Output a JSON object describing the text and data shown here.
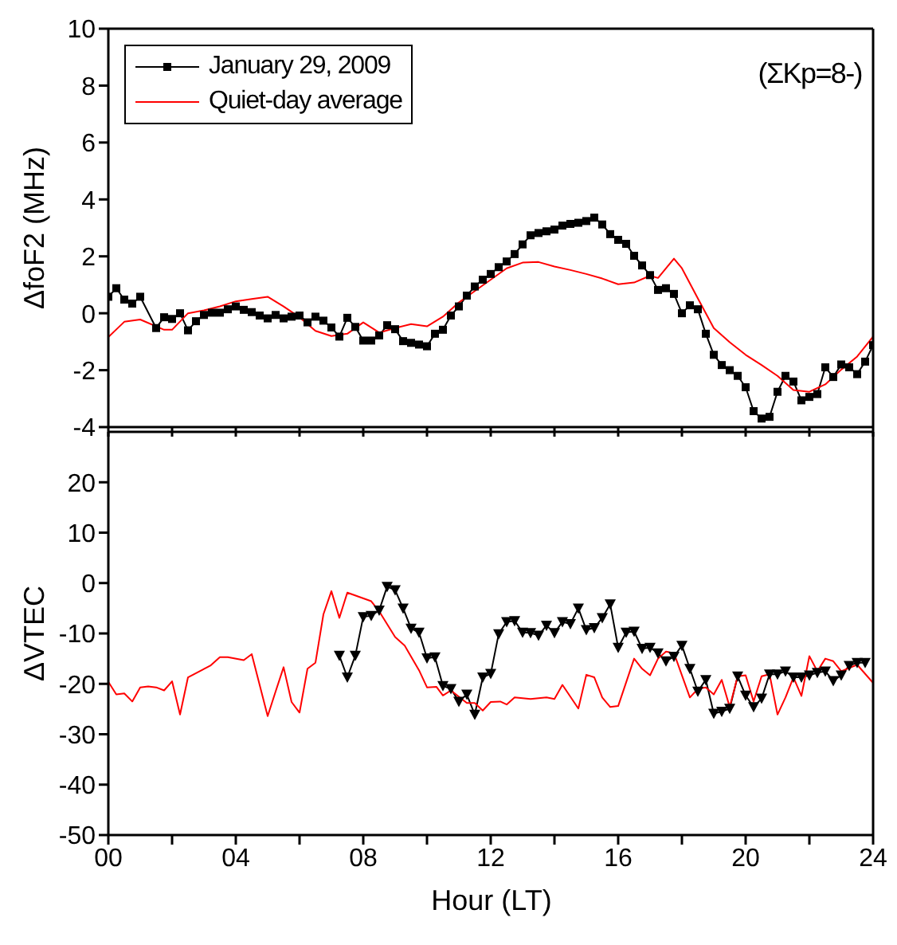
{
  "chart_data": [
    {
      "type": "line",
      "ylabel": "ΔfoF2 (MHz)",
      "xlim": [
        0,
        24
      ],
      "xticks": [
        {
          "value": 0,
          "label": null
        },
        {
          "value": 2,
          "label": null
        },
        {
          "value": 4,
          "label": null
        },
        {
          "value": 6,
          "label": null
        },
        {
          "value": 8,
          "label": null
        },
        {
          "value": 10,
          "label": null
        },
        {
          "value": 12,
          "label": null
        },
        {
          "value": 14,
          "label": null
        },
        {
          "value": 16,
          "label": null
        },
        {
          "value": 18,
          "label": null
        },
        {
          "value": 20,
          "label": null
        },
        {
          "value": 22,
          "label": null
        },
        {
          "value": 24,
          "label": null
        }
      ],
      "ylim": [
        -4,
        10
      ],
      "yticks": [
        -4,
        -2,
        0,
        2,
        4,
        6,
        8,
        10
      ],
      "tick_labels": "y",
      "legend": "top left",
      "annotations": [
        "(ΣKp=8-)"
      ],
      "series": [
        {
          "name": "January 29, 2009",
          "color": "#000000",
          "marker": "square",
          "x": [
            0,
            0.25,
            0.5,
            0.75,
            1,
            1.5,
            1.75,
            2,
            2.25,
            2.5,
            2.75,
            3,
            3.25,
            3.5,
            3.75,
            4,
            4.25,
            4.5,
            4.75,
            5,
            5.25,
            5.5,
            5.75,
            6,
            6.25,
            6.5,
            6.75,
            7,
            7.25,
            7.5,
            7.75,
            8,
            8.25,
            8.5,
            8.75,
            9,
            9.25,
            9.5,
            9.75,
            10,
            10.25,
            10.5,
            10.75,
            11,
            11.25,
            11.5,
            11.75,
            12,
            12.25,
            12.5,
            12.75,
            13,
            13.25,
            13.5,
            13.75,
            14,
            14.25,
            14.5,
            14.75,
            15,
            15.25,
            15.5,
            15.75,
            16,
            16.25,
            16.5,
            16.75,
            17,
            17.25,
            17.5,
            17.75,
            18,
            18.25,
            18.5,
            18.75,
            19,
            19.25,
            19.5,
            19.75,
            20,
            20.25,
            20.5,
            20.75,
            21,
            21.25,
            21.5,
            21.75,
            22,
            22.25,
            22.5,
            22.75,
            23,
            23.25,
            23.5,
            23.75,
            24
          ],
          "values": [
            0.58,
            0.88,
            0.48,
            0.34,
            0.58,
            -0.52,
            -0.14,
            -0.2,
            0,
            -0.6,
            -0.28,
            -0.06,
            0.02,
            0.02,
            0.14,
            0.24,
            0.12,
            0.04,
            -0.08,
            -0.18,
            -0.06,
            -0.18,
            -0.12,
            -0.08,
            -0.32,
            -0.12,
            -0.26,
            -0.5,
            -0.82,
            -0.16,
            -0.48,
            -0.96,
            -0.96,
            -0.78,
            -0.42,
            -0.56,
            -0.98,
            -1.04,
            -1.1,
            -1.16,
            -0.72,
            -0.58,
            -0.08,
            0.24,
            0.62,
            0.94,
            1.18,
            1.38,
            1.62,
            1.82,
            2.08,
            2.42,
            2.74,
            2.82,
            2.88,
            2.94,
            3.08,
            3.14,
            3.18,
            3.24,
            3.36,
            3.12,
            2.78,
            2.58,
            2.44,
            2.02,
            1.68,
            1.34,
            0.82,
            0.88,
            0.68,
            0,
            0.28,
            0.14,
            -0.72,
            -1.46,
            -1.82,
            -2,
            -2.2,
            -2.6,
            -3.44,
            -3.7,
            -3.64,
            -2.76,
            -2.2,
            -2.4,
            -3.06,
            -2.94,
            -2.84,
            -1.9,
            -2.24,
            -1.8,
            -1.9,
            -2.14,
            -1.7,
            -1.12
          ]
        },
        {
          "name": "Quiet-day average",
          "color": "#ff0000",
          "marker": "none",
          "x": [
            0,
            0.5,
            1,
            1.75,
            2,
            2.5,
            3,
            3.5,
            4,
            4.5,
            5,
            5.5,
            6,
            6.5,
            7,
            7.5,
            8,
            8.5,
            9,
            9.5,
            10,
            10.5,
            11,
            11.5,
            12,
            12.5,
            13,
            13.5,
            14,
            14.5,
            15,
            15.5,
            16,
            16.5,
            17,
            17.25,
            17.75,
            18,
            18.5,
            19,
            19.5,
            20,
            20.5,
            21,
            21.5,
            22,
            22.5,
            23,
            23.5,
            24
          ],
          "values": [
            -0.84,
            -0.3,
            -0.22,
            -0.58,
            -0.58,
            0,
            0.1,
            0.24,
            0.42,
            0.5,
            0.58,
            0.24,
            -0.14,
            -0.62,
            -0.8,
            -0.72,
            -0.32,
            -0.68,
            -0.52,
            -0.38,
            -0.46,
            -0.12,
            0.38,
            0.78,
            1.18,
            1.58,
            1.78,
            1.8,
            1.64,
            1.52,
            1.38,
            1.22,
            1.02,
            1.08,
            1.32,
            1.24,
            1.92,
            1.58,
            0.52,
            -0.52,
            -1.02,
            -1.46,
            -1.82,
            -2.2,
            -2.7,
            -2.76,
            -2.5,
            -1.98,
            -1.52,
            -0.82
          ]
        }
      ]
    },
    {
      "type": "line",
      "xlabel": "Hour (LT)",
      "ylabel": "ΔVTEC",
      "xlim": [
        0,
        24
      ],
      "xticks": [
        {
          "value": 0,
          "label": "00"
        },
        {
          "value": 2,
          "label": null
        },
        {
          "value": 4,
          "label": "04"
        },
        {
          "value": 6,
          "label": null
        },
        {
          "value": 8,
          "label": "08"
        },
        {
          "value": 10,
          "label": null
        },
        {
          "value": 12,
          "label": "12"
        },
        {
          "value": 14,
          "label": null
        },
        {
          "value": 16,
          "label": "16"
        },
        {
          "value": 18,
          "label": null
        },
        {
          "value": 20,
          "label": "20"
        },
        {
          "value": 22,
          "label": null
        },
        {
          "value": 24,
          "label": "24"
        }
      ],
      "ylim": [
        -50,
        30
      ],
      "yticks": [
        -50,
        -40,
        -30,
        -20,
        -10,
        0,
        10,
        20
      ],
      "series": [
        {
          "color": "#000000",
          "marker": "triangle",
          "x": [
            7.25,
            7.5,
            7.75,
            8,
            8.25,
            8.5,
            8.75,
            9,
            9.25,
            9.5,
            9.75,
            10,
            10.25,
            10.5,
            10.75,
            11,
            11.25,
            11.5,
            11.75,
            12,
            12.25,
            12.5,
            12.75,
            13,
            13.25,
            13.5,
            13.75,
            14,
            14.25,
            14.5,
            14.75,
            15,
            15.25,
            15.5,
            15.75,
            16,
            16.25,
            16.5,
            16.75,
            17,
            17.25,
            17.5,
            17.75,
            18,
            18.25,
            18.5,
            18.75,
            19,
            19.25,
            19.5,
            19.75,
            20,
            20.25,
            20.5,
            20.75,
            21,
            21.25,
            21.5,
            21.75,
            22,
            22.25,
            22.5,
            22.75,
            23,
            23.25,
            23.5,
            23.75
          ],
          "values": [
            -14.4,
            -18.7,
            -14.4,
            -6.7,
            -6.5,
            -5.4,
            -0.7,
            -1.4,
            -5,
            -9,
            -9.8,
            -14.9,
            -14.7,
            -20.4,
            -21,
            -23.5,
            -22.1,
            -26.1,
            -18.7,
            -18,
            -10.1,
            -7.7,
            -7.5,
            -9.8,
            -9.9,
            -10.4,
            -8.4,
            -9.9,
            -7.7,
            -8.1,
            -5,
            -9.3,
            -8.9,
            -6.9,
            -4.2,
            -12.8,
            -9.8,
            -9.6,
            -13,
            -12.8,
            -13.9,
            -15.5,
            -14.6,
            -12.4,
            -17,
            -21.5,
            -19.2,
            -25.9,
            -25.5,
            -24.9,
            -18.5,
            -22.3,
            -24.6,
            -22.9,
            -18.1,
            -18.1,
            -17.5,
            -18.7,
            -18.7,
            -18.3,
            -17.8,
            -17.5,
            -19.4,
            -18.3,
            -16.4,
            -15.8,
            -15.8
          ]
        },
        {
          "color": "#ff0000",
          "marker": "none",
          "x": [
            0,
            0.25,
            0.5,
            0.75,
            1,
            1.25,
            1.5,
            1.75,
            2,
            2.25,
            2.5,
            3.2,
            3.5,
            3.75,
            4.25,
            4.5,
            5,
            5.25,
            5.5,
            5.75,
            6,
            6.25,
            6.5,
            6.75,
            7,
            7.25,
            7.5,
            8.25,
            8.5,
            9,
            9.3,
            9.75,
            10,
            10.3,
            10.5,
            10.75,
            11.25,
            11.5,
            11.75,
            12,
            12.3,
            12.5,
            12.75,
            13.25,
            13.75,
            14,
            14.25,
            14.75,
            15,
            15.25,
            15.5,
            15.75,
            16,
            16.5,
            16.75,
            17,
            17.25,
            17.5,
            17.75,
            18.25,
            18.5,
            18.75,
            19,
            19.25,
            19.5,
            19.75,
            20,
            20.25,
            20.5,
            20.75,
            21,
            21.25,
            21.5,
            21.75,
            22,
            22.25,
            22.5,
            22.75,
            23,
            23.5,
            24
          ],
          "values": [
            -19.6,
            -22.1,
            -21.9,
            -23.5,
            -20.7,
            -20.5,
            -20.7,
            -21.3,
            -19.5,
            -26.1,
            -18.7,
            -16.4,
            -14.7,
            -14.7,
            -15.3,
            -14.1,
            -26.4,
            -21.5,
            -16.7,
            -23.6,
            -25.7,
            -17,
            -15.8,
            -6.2,
            -1.6,
            -6.9,
            -1.9,
            -3.6,
            -5.6,
            -10.7,
            -12.4,
            -17.3,
            -20.7,
            -20.6,
            -22.3,
            -21.3,
            -23.8,
            -23.8,
            -25.3,
            -23.6,
            -23.5,
            -24.1,
            -22.7,
            -23,
            -22.7,
            -23,
            -20.2,
            -24.9,
            -18.2,
            -18.7,
            -22.7,
            -24.6,
            -24.4,
            -15,
            -17,
            -18.3,
            -15,
            -13.6,
            -13.9,
            -22.7,
            -21,
            -20.7,
            -22.1,
            -19.2,
            -24.6,
            -18.5,
            -18.3,
            -23.5,
            -18.5,
            -18.1,
            -26.1,
            -22.7,
            -18.7,
            -22.4,
            -14.5,
            -17.5,
            -15,
            -15.5,
            -17.5,
            -16.2,
            -19.8
          ]
        }
      ]
    }
  ]
}
